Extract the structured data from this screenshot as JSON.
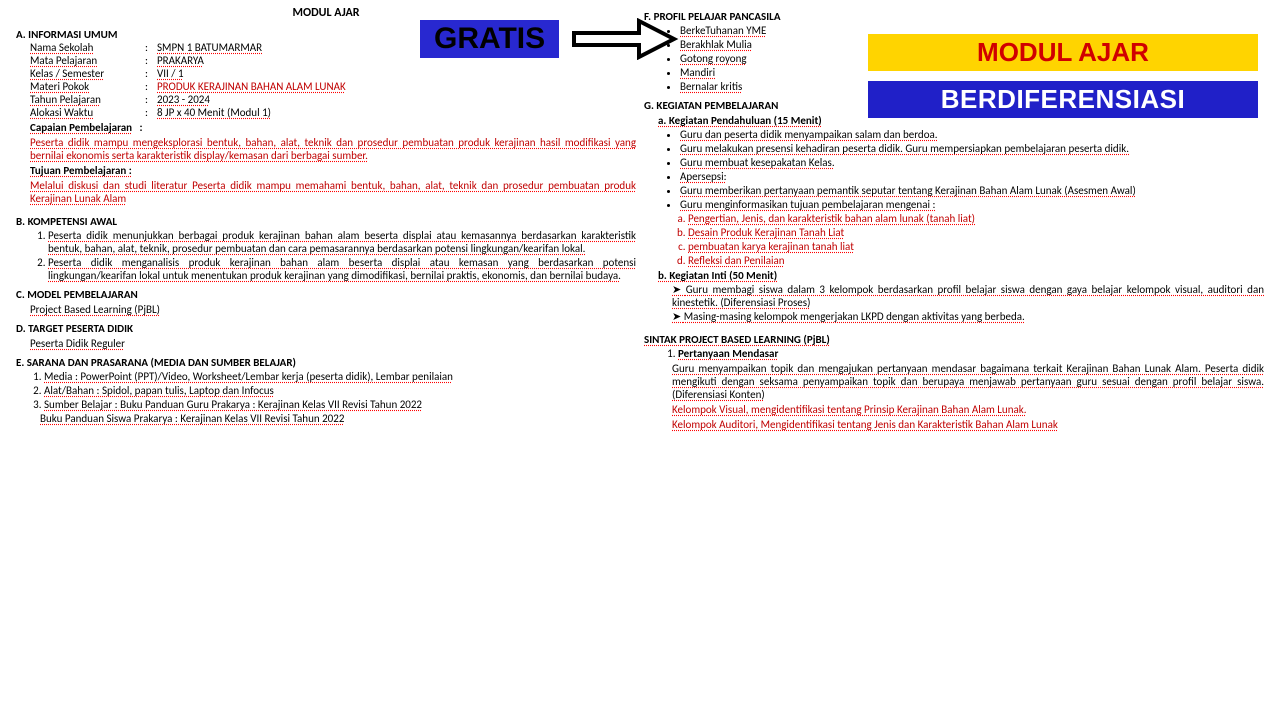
{
  "title_top": "MODUL AJAR",
  "banner_gratis": "GRATIS",
  "badge1": "MODUL AJAR",
  "badge2": "BERDIFERENSIASI",
  "colors": {
    "banner_bg": "#2828d0",
    "badge1_bg": "#ffd400",
    "badge1_fg": "#d00000",
    "badge2_bg": "#2020c8",
    "red_text": "#c00000"
  },
  "secA": {
    "head": "A. INFORMASI UMUM",
    "rows": [
      {
        "label": "Nama Sekolah",
        "val": "SMPN 1 BATUMARMAR"
      },
      {
        "label": "Mata Pelajaran",
        "val": "PRAKARYA"
      },
      {
        "label": "Kelas / Semester",
        "val": "VII / 1"
      },
      {
        "label": "Materi Pokok",
        "val": "PRODUK KERAJINAN BAHAN ALAM LUNAK",
        "red": true
      },
      {
        "label": "Tahun Pelajaran",
        "val": "2023 - 2024"
      },
      {
        "label": "Alokasi Waktu",
        "val": "8 JP x 40 Menit (Modul 1)"
      }
    ],
    "cap_head": "Capaian Pembelajaran",
    "cap_body": "Peserta didik mampu mengeksplorasi bentuk, bahan, alat, teknik dan prosedur pembuatan produk kerajinan hasil modifikasi yang bernilai ekonomis serta karakteristik display/kemasan dari berbagai sumber.",
    "tuj_head": "Tujuan Pembelajaran :",
    "tuj_body": "Melalui diskusi dan studi literatur Peserta didik mampu memahami bentuk, bahan, alat, teknik dan prosedur pembuatan produk Kerajinan Lunak Alam"
  },
  "secB": {
    "head": "B. KOMPETENSI AWAL",
    "items": [
      "Peserta didik menunjukkan berbagai produk kerajinan bahan alam beserta displai atau kemasannya berdasarkan karakteristik bentuk, bahan, alat, teknik, prosedur pembuatan dan cara pemasarannya berdasarkan potensi lingkungan/kearifan lokal.",
      "Peserta didik menganalisis produk kerajinan bahan alam beserta displai atau kemasan yang berdasarkan potensi lingkungan/kearifan lokal untuk menentukan produk kerajinan yang dimodifikasi, bernilai praktis, ekonomis, dan bernilai budaya."
    ]
  },
  "secC": {
    "head": "C. MODEL PEMBELAJARAN",
    "body": "Project Based Learning (PjBL)"
  },
  "secD": {
    "head": "D. TARGET PESERTA DIDIK",
    "body": "Peserta Didik Reguler"
  },
  "secE": {
    "head": "E. SARANA DAN PRASARANA (MEDIA DAN SUMBER BELAJAR)",
    "items": [
      "Media : PowerPoint (PPT)/Video, Worksheet/Lembar kerja (peserta didik), Lembar penilaian",
      "Alat/Bahan : Spidol, papan tulis, Laptop dan Infocus",
      "Sumber Belajar : Buku Panduan Guru Prakarya : Kerajinan Kelas VII Revisi Tahun 2022",
      "Buku Panduan Siswa Prakarya : Kerajinan Kelas VII Revisi Tahun 2022"
    ]
  },
  "secF": {
    "head": "F. PROFIL PELAJAR PANCASILA",
    "items": [
      "BerkeTuhanan YME",
      "Berakhlak Mulia",
      "Gotong royong",
      "Mandiri",
      "Bernalar kritis"
    ]
  },
  "secG": {
    "head": "G. KEGIATAN PEMBELAJARAN",
    "sub_a": "a. Kegiatan Pendahuluan (15 Menit)",
    "a_items": [
      "Guru dan peserta didik menyampaikan salam dan berdoa.",
      "Guru melakukan presensi kehadiran peserta didik. Guru mempersiapkan pembelajaran peserta didik.",
      "Guru membuat kesepakatan Kelas.",
      "Apersepsi:",
      "Guru memberikan pertanyaan pemantik seputar tentang Kerajinan Bahan Alam Lunak (Asesmen Awal)",
      "Guru menginformasikan tujuan pembelajaran mengenai :"
    ],
    "a_sub": [
      "Pengertian, Jenis, dan karakteristik bahan alam lunak (tanah liat)",
      "Desain Produk Kerajinan Tanah Liat",
      "pembuatan karya kerajinan tanah liat",
      "Refleksi dan Penilaian"
    ],
    "sub_b": "b. Kegiatan Inti (50 Menit)",
    "b_items": [
      "Guru membagi siswa dalam 3 kelompok berdasarkan profil belajar siswa dengan gaya belajar kelompok visual, auditori dan kinestetik. (Diferensiasi Proses)",
      "Masing-masing kelompok mengerjakan LKPD dengan aktivitas yang berbeda."
    ]
  },
  "sintak": {
    "head": "SINTAK PROJECT BASED LEARNING (PjBL)",
    "item1": "Pertanyaan Mendasar",
    "body": "Guru menyampaikan topik dan mengajukan pertanyaan mendasar bagaimana terkait Kerajinan Bahan Lunak Alam. Peserta didik mengikuti dengan seksama penyampaikan topik dan berupaya menjawab pertanyaan guru sesuai dengan profil belajar siswa. (Diferensiasi Konten)",
    "k1": "Kelompok Visual, mengidentifikasi tentang Prinsip Kerajinan Bahan Alam Lunak.",
    "k2": "Kelompok Auditori, Mengidentifikasi tentang Jenis dan Karakteristik Bahan Alam Lunak"
  }
}
